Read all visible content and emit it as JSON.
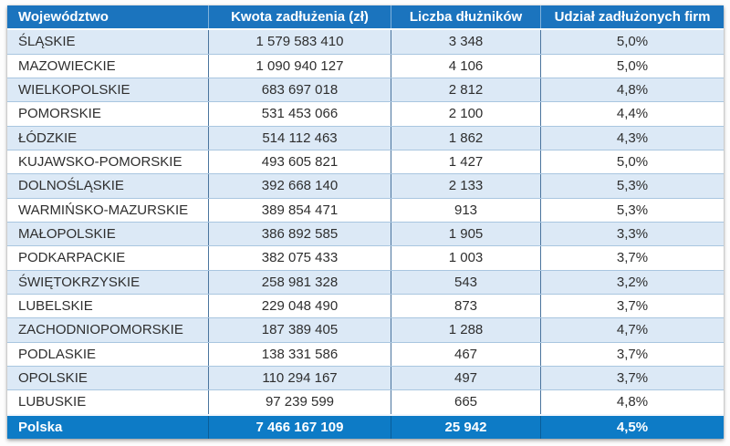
{
  "colors": {
    "header_bg": "#1B74BE",
    "footer_bg": "#0D7BC6",
    "stripe": "#DCE9F6",
    "row_white": "#FFFFFF",
    "row_border": "#A9C6E0",
    "col_border": "#4A749E",
    "text": "#2E2E2E",
    "header_text": "#FFFFFF"
  },
  "chart_data": {
    "type": "table",
    "columns": [
      "Województwo",
      "Kwota zadłużenia (zł)",
      "Liczba dłużników",
      "Udział zadłużonych firm"
    ],
    "rows": [
      {
        "region": "ŚLĄSKIE",
        "amount": "1 579 583 410",
        "debtors": "3 348",
        "share": "5,0%"
      },
      {
        "region": "MAZOWIECKIE",
        "amount": "1 090 940 127",
        "debtors": "4 106",
        "share": "5,0%"
      },
      {
        "region": "WIELKOPOLSKIE",
        "amount": "683 697 018",
        "debtors": "2 812",
        "share": "4,8%"
      },
      {
        "region": "POMORSKIE",
        "amount": "531 453 066",
        "debtors": "2 100",
        "share": "4,4%"
      },
      {
        "region": "ŁÓDZKIE",
        "amount": "514 112 463",
        "debtors": "1 862",
        "share": "4,3%"
      },
      {
        "region": "KUJAWSKO-POMORSKIE",
        "amount": "493 605 821",
        "debtors": "1 427",
        "share": "5,0%"
      },
      {
        "region": "DOLNOŚLĄSKIE",
        "amount": "392 668 140",
        "debtors": "2 133",
        "share": "5,3%"
      },
      {
        "region": "WARMIŃSKO-MAZURSKIE",
        "amount": "389 854 471",
        "debtors": "913",
        "share": "5,3%"
      },
      {
        "region": "MAŁOPOLSKIE",
        "amount": "386 892 585",
        "debtors": "1 905",
        "share": "3,3%"
      },
      {
        "region": "PODKARPACKIE",
        "amount": "382 075 433",
        "debtors": "1 003",
        "share": "3,7%"
      },
      {
        "region": "ŚWIĘTOKRZYSKIE",
        "amount": "258 981 328",
        "debtors": "543",
        "share": "3,2%"
      },
      {
        "region": "LUBELSKIE",
        "amount": "229 048 490",
        "debtors": "873",
        "share": "3,7%"
      },
      {
        "region": "ZACHODNIOPOMORSKIE",
        "amount": "187 389 405",
        "debtors": "1 288",
        "share": "4,7%"
      },
      {
        "region": "PODLASKIE",
        "amount": "138 331 586",
        "debtors": "467",
        "share": "3,7%"
      },
      {
        "region": "OPOLSKIE",
        "amount": "110 294 167",
        "debtors": "497",
        "share": "3,7%"
      },
      {
        "region": "LUBUSKIE",
        "amount": "97 239 599",
        "debtors": "665",
        "share": "4,8%"
      }
    ],
    "total": {
      "region": "Polska",
      "amount": "7 466 167 109",
      "debtors": "25 942",
      "share": "4,5%"
    }
  }
}
